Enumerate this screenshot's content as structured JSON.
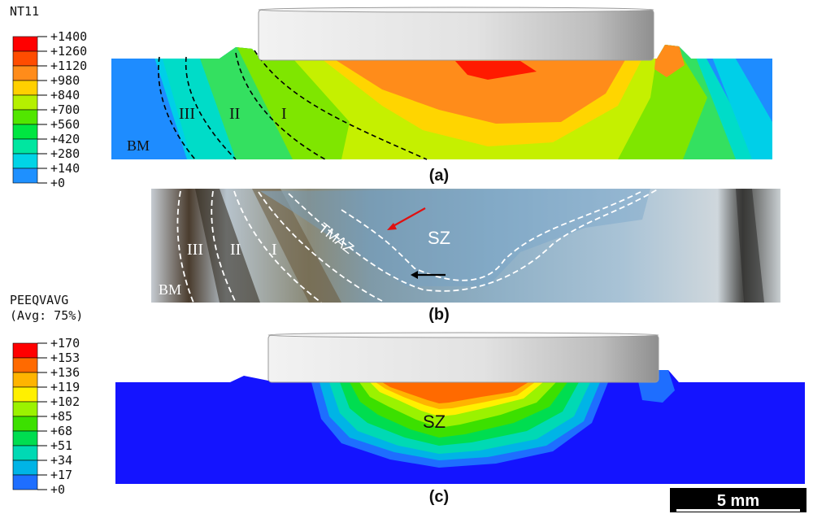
{
  "panel_a": {
    "legend_title": "NT11",
    "legend_values": [
      "+1400",
      "+1260",
      "+1120",
      "+980",
      "+840",
      "+700",
      "+560",
      "+420",
      "+280",
      "+140",
      "+0"
    ],
    "legend_colors": [
      "#ff0000",
      "#ff4c00",
      "#ff8c1a",
      "#ffd000",
      "#b5f000",
      "#52e600",
      "#00e641",
      "#00e6a0",
      "#00d4e6",
      "#1e90ff",
      "#1414ff"
    ],
    "zone_labels": [
      "III",
      "II",
      "I",
      "BM"
    ],
    "caption": "(a)"
  },
  "panel_b": {
    "zone_labels": [
      "III",
      "II",
      "I",
      "TMAZ",
      "SZ",
      "BM"
    ],
    "caption": "(b)"
  },
  "panel_c": {
    "legend_title_1": "PEEQVAVG",
    "legend_title_2": "(Avg: 75%)",
    "legend_values": [
      "+170",
      "+153",
      "+136",
      "+119",
      "+102",
      "+85",
      "+68",
      "+51",
      "+34",
      "+17",
      "+0"
    ],
    "legend_colors": [
      "#ff0000",
      "#ff6a00",
      "#ffb400",
      "#fff000",
      "#9bf200",
      "#3ce000",
      "#00dd50",
      "#00d9b4",
      "#00b4e6",
      "#1e6eff",
      "#1414ff"
    ],
    "zone_label": "SZ",
    "caption": "(c)"
  },
  "scale_bar": {
    "label": "5 mm"
  }
}
